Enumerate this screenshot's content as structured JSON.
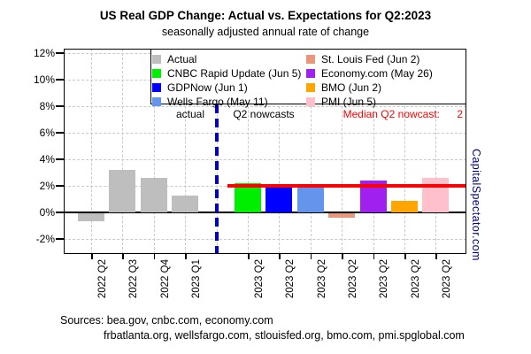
{
  "watermark": "CapitalSpectator.com",
  "sources": {
    "line1": "Sources: bea.gov, cnbc.com, economy.com",
    "line2": "frbatlanta.org, wellsfargo.com, stlouisfed.org, bmo.com, pmi.spglobal.com"
  },
  "chart_data": {
    "type": "bar",
    "title": "US Real GDP Change: Actual vs. Expectations for Q2:2023",
    "subtitle": "seasonally adjusted annual rate of change",
    "xlabel": "",
    "ylabel": "",
    "ylim": [
      -3.1,
      12.3
    ],
    "yticks": [
      12,
      10,
      8,
      6,
      4,
      2,
      0,
      -2
    ],
    "ytick_suffix": "%",
    "grid": "dashed",
    "legend": {
      "position": "top-inside",
      "columns": [
        [
          "Actual",
          "CNBC Rapid Update (Jun 5)",
          "GDPNow (Jun 1)",
          "Wells Fargo (May 11)"
        ],
        [
          "St. Louis Fed (Jun 2)",
          "Economy.com (May 26)",
          "BMO (Jun 2)",
          "PMI (Jun 5)"
        ]
      ]
    },
    "series_colors": {
      "Actual": "#BEBEBE",
      "CNBC Rapid Update (Jun 5)": "#00EE00",
      "GDPNow (Jun 1)": "#0000FF",
      "Wells Fargo (May 11)": "#6495ED",
      "St. Louis Fed (Jun 2)": "#E9967A",
      "Economy.com (May 26)": "#A020F0",
      "BMO (Jun 2)": "#FFA500",
      "PMI (Jun 5)": "#FFC0CB"
    },
    "bars": [
      {
        "category": "2022 Q2",
        "series": "Actual",
        "value": -0.6
      },
      {
        "category": "2022 Q3",
        "series": "Actual",
        "value": 3.2
      },
      {
        "category": "2022 Q4",
        "series": "Actual",
        "value": 2.6
      },
      {
        "category": "2023 Q1",
        "series": "Actual",
        "value": 1.3
      },
      {
        "category": "2023 Q2",
        "series": "CNBC Rapid Update (Jun 5)",
        "value": 2.2
      },
      {
        "category": "2023 Q2",
        "series": "GDPNow (Jun 1)",
        "value": 2.0
      },
      {
        "category": "2023 Q2",
        "series": "Wells Fargo (May 11)",
        "value": 1.9
      },
      {
        "category": "2023 Q2",
        "series": "St. Louis Fed (Jun 2)",
        "value": -0.3
      },
      {
        "category": "2023 Q2",
        "series": "Economy.com (May 26)",
        "value": 2.4
      },
      {
        "category": "2023 Q2",
        "series": "BMO (Jun 2)",
        "value": 0.9
      },
      {
        "category": "2023 Q2",
        "series": "PMI (Jun 5)",
        "value": 2.6
      }
    ],
    "median_line": {
      "label": "Median Q2 nowcast:",
      "value": 2.0,
      "display_value": "2",
      "color": "#FF0000"
    },
    "divider": {
      "style": "dashed",
      "color": "#0000CD",
      "between": "actual and nowcasts"
    },
    "annotations": {
      "left_section": "actual",
      "right_section": "Q2 nowcasts"
    }
  }
}
